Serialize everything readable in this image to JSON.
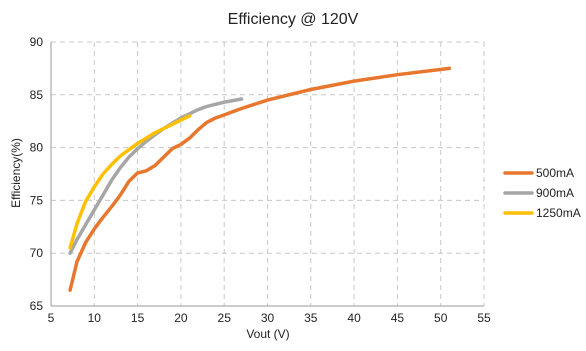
{
  "chart_data": {
    "type": "line",
    "title": "Efficiency @ 120V",
    "xlabel": "Vout (V)",
    "ylabel": "Efficiency(%)",
    "xlim": [
      5,
      55
    ],
    "ylim": [
      65,
      90
    ],
    "xticks": [
      5,
      10,
      15,
      20,
      25,
      30,
      35,
      40,
      45,
      50,
      55
    ],
    "yticks": [
      65,
      70,
      75,
      80,
      85,
      90
    ],
    "grid": true,
    "legend_position": "right",
    "series": [
      {
        "name": "500mA",
        "color": "#E8772E",
        "points": [
          [
            7.2,
            66.5
          ],
          [
            8,
            69.2
          ],
          [
            9,
            71
          ],
          [
            10,
            72.3
          ],
          [
            11,
            73.4
          ],
          [
            12,
            74.4
          ],
          [
            13,
            75.5
          ],
          [
            14,
            76.8
          ],
          [
            15,
            77.6
          ],
          [
            16,
            77.8
          ],
          [
            17,
            78.3
          ],
          [
            18,
            79.1
          ],
          [
            19,
            79.9
          ],
          [
            20,
            80.3
          ],
          [
            21,
            80.9
          ],
          [
            22,
            81.7
          ],
          [
            23,
            82.4
          ],
          [
            24,
            82.8
          ],
          [
            25,
            83.1
          ],
          [
            27,
            83.7
          ],
          [
            30,
            84.5
          ],
          [
            35,
            85.5
          ],
          [
            40,
            86.3
          ],
          [
            45,
            86.9
          ],
          [
            51,
            87.5
          ]
        ]
      },
      {
        "name": "900mA",
        "color": "#A6A6A6",
        "points": [
          [
            7.2,
            70
          ],
          [
            8,
            71.3
          ],
          [
            9,
            72.7
          ],
          [
            10,
            74.1
          ],
          [
            11,
            75.5
          ],
          [
            12,
            76.9
          ],
          [
            13,
            78.1
          ],
          [
            14,
            79.1
          ],
          [
            15,
            79.9
          ],
          [
            16,
            80.6
          ],
          [
            17,
            81.2
          ],
          [
            18,
            81.8
          ],
          [
            19,
            82.3
          ],
          [
            20,
            82.8
          ],
          [
            21,
            83.2
          ],
          [
            22,
            83.6
          ],
          [
            23,
            83.9
          ],
          [
            24,
            84.1
          ],
          [
            25,
            84.3
          ],
          [
            27,
            84.6
          ]
        ]
      },
      {
        "name": "1250mA",
        "color": "#FFC000",
        "points": [
          [
            7.2,
            70.5
          ],
          [
            8,
            72.8
          ],
          [
            9,
            74.9
          ],
          [
            10,
            76.3
          ],
          [
            11,
            77.5
          ],
          [
            12,
            78.4
          ],
          [
            13,
            79.2
          ],
          [
            14,
            79.8
          ],
          [
            15,
            80.4
          ],
          [
            16,
            80.9
          ],
          [
            17,
            81.4
          ],
          [
            18,
            81.8
          ],
          [
            19,
            82.2
          ],
          [
            20,
            82.6
          ],
          [
            21,
            83
          ]
        ]
      }
    ]
  }
}
